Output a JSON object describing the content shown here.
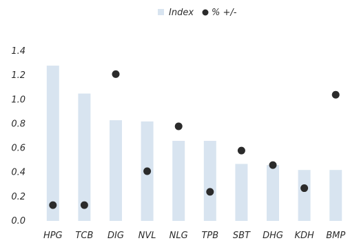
{
  "chart_data": {
    "type": "bar",
    "categories": [
      "HPG",
      "TCB",
      "DIG",
      "NVL",
      "NLG",
      "TPB",
      "SBT",
      "DHG",
      "KDH",
      "BMP"
    ],
    "series": [
      {
        "name": "Index",
        "kind": "bar",
        "color": "#d8e4f0",
        "values": [
          1.28,
          1.05,
          0.83,
          0.82,
          0.66,
          0.66,
          0.47,
          0.46,
          0.42,
          0.42
        ]
      },
      {
        "name": "% +/-",
        "kind": "dot",
        "color": "#2b2b2b",
        "values": [
          0.13,
          0.13,
          1.21,
          0.41,
          0.78,
          0.24,
          0.58,
          0.46,
          0.27,
          1.04
        ]
      }
    ],
    "ylim": [
      0.0,
      1.4
    ],
    "yticks": [
      "0.0",
      "0.2",
      "0.4",
      "0.6",
      "0.8",
      "1.0",
      "1.2",
      "1.4"
    ],
    "grid": false,
    "legend_position": "top-center"
  }
}
